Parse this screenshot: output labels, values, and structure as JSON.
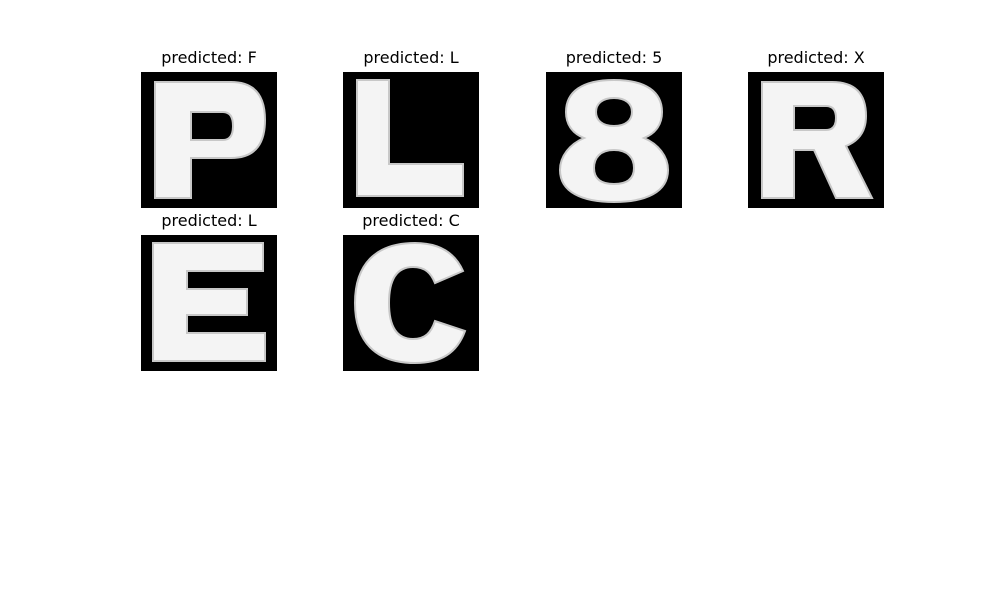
{
  "figure": {
    "panels": [
      {
        "caption": "predicted: F",
        "glyph": "letter-P-image"
      },
      {
        "caption": "predicted: L",
        "glyph": "letter-L-image"
      },
      {
        "caption": "predicted: 5",
        "glyph": "digit-8-image"
      },
      {
        "caption": "predicted: X",
        "glyph": "letter-R-image"
      },
      {
        "caption": "predicted: L",
        "glyph": "letter-E-image"
      },
      {
        "caption": "predicted: C",
        "glyph": "letter-C-image"
      }
    ],
    "colors": {
      "tile_background": "#000000",
      "glyph_fill": "#f4f4f4",
      "glyph_edge": "#c8c8c8",
      "caption_text": "#000000",
      "page_background": "#ffffff"
    }
  }
}
